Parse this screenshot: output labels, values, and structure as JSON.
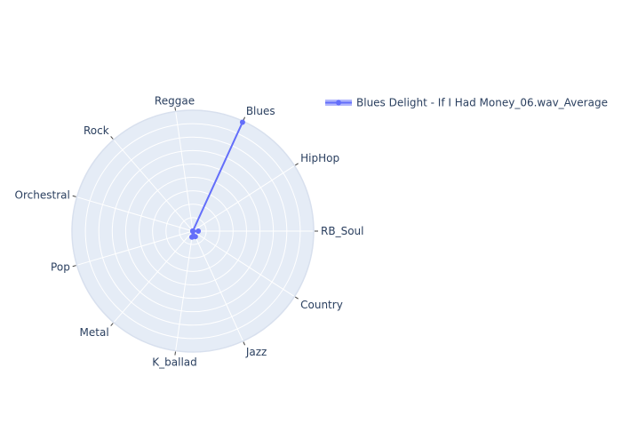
{
  "chart_data": {
    "type": "radar",
    "categories": [
      "RB_Soul",
      "HipHop",
      "Blues",
      "Reggae",
      "Rock",
      "Orchestral",
      "Pop",
      "Metal",
      "K_ballad",
      "Jazz",
      "Country"
    ],
    "series": [
      {
        "name": "Blues Delight - If I Had Money_06.wav_Average",
        "values": [
          0.045,
          0.0,
          0.99,
          0.0,
          0.0,
          0.0,
          0.0,
          0.0,
          0.05,
          0.05,
          0.0
        ]
      }
    ],
    "radial_range": [
      0,
      1
    ],
    "grid": true,
    "legend_position": "top-right",
    "colors": {
      "series": "#636efa",
      "plot_background": "#e5ecf6",
      "grid": "#ffffff",
      "text": "#2a3f5f",
      "tick": "#444444"
    }
  }
}
